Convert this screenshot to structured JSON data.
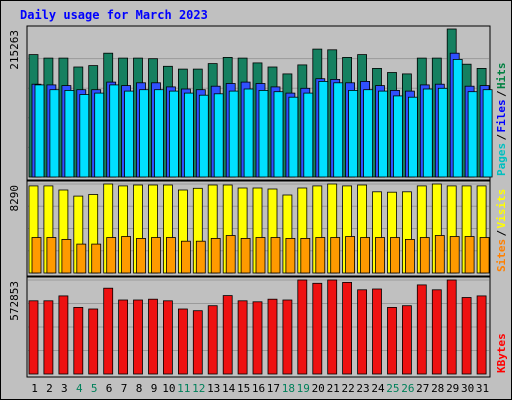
{
  "chart_data": {
    "type": "bar",
    "title": "Daily usage for March 2023",
    "days": [
      "1",
      "2",
      "3",
      "4",
      "5",
      "6",
      "7",
      "8",
      "9",
      "10",
      "11",
      "12",
      "13",
      "14",
      "15",
      "16",
      "17",
      "18",
      "19",
      "20",
      "21",
      "22",
      "23",
      "24",
      "25",
      "26",
      "27",
      "28",
      "29",
      "30",
      "31"
    ],
    "weekend_days": [
      "4",
      "5",
      "11",
      "12",
      "18",
      "19",
      "25",
      "26"
    ],
    "panels": [
      {
        "id": "pages-files-hits",
        "max_label": "215263",
        "ymax": 215263,
        "legend": [
          {
            "name": "Pages",
            "color": "#00c0c0"
          },
          {
            "name": "Files",
            "color": "#0000ff"
          },
          {
            "name": "Hits",
            "color": "#008040"
          }
        ],
        "series": [
          {
            "name": "Hits",
            "color": "#158060",
            "values": [
              178000,
              173000,
              173000,
              160000,
              162000,
              180000,
              173000,
              173000,
              172000,
              161000,
              157000,
              157000,
              165000,
              174000,
              173000,
              166000,
              160000,
              150000,
              163000,
              186000,
              185000,
              174000,
              178000,
              158000,
              152000,
              150000,
              173000,
              173000,
              215263,
              164000,
              158000
            ]
          },
          {
            "name": "Files",
            "color": "#3050ff",
            "values": [
              135000,
              134000,
              133000,
              127000,
              127000,
              138000,
              133000,
              137000,
              137000,
              131000,
              128000,
              127000,
              132000,
              136000,
              138000,
              136000,
              131000,
              122000,
              129000,
              143000,
              142000,
              137000,
              139000,
              133000,
              126000,
              125000,
              134000,
              135000,
              180000,
              132000,
              133000
            ]
          },
          {
            "name": "Pages",
            "color": "#00e0ff",
            "values": [
              134000,
              127000,
              126000,
              120000,
              122000,
              134000,
              125000,
              127000,
              127000,
              125000,
              122000,
              119000,
              121000,
              125000,
              128000,
              126000,
              124000,
              116000,
              122000,
              139000,
              137000,
              126000,
              127000,
              125000,
              118000,
              116000,
              128000,
              129000,
              171000,
              124000,
              127000
            ]
          }
        ]
      },
      {
        "id": "sites-visits",
        "max_label": "8290",
        "ymax": 8290,
        "legend": [
          {
            "name": "Sites",
            "color": "#ff8000"
          },
          {
            "name": "Visits",
            "color": "#ffff00"
          }
        ],
        "series": [
          {
            "name": "Visits",
            "color": "#ffff00",
            "values": [
              8110,
              8110,
              7730,
              7160,
              7310,
              8290,
              8110,
              8200,
              8200,
              8200,
              7730,
              7890,
              8200,
              8200,
              7920,
              7920,
              7820,
              7270,
              7920,
              8110,
              8290,
              8110,
              8200,
              7560,
              7530,
              7560,
              8110,
              8290,
              8110,
              8110,
              8110
            ]
          },
          {
            "name": "Sites",
            "color": "#ff9a00",
            "values": [
              3310,
              3310,
              3130,
              2690,
              2690,
              3310,
              3400,
              3220,
              3310,
              3310,
              2960,
              2960,
              3220,
              3490,
              3220,
              3310,
              3310,
              3220,
              3220,
              3310,
              3310,
              3400,
              3310,
              3310,
              3310,
              3130,
              3310,
              3490,
              3400,
              3400,
              3310
            ]
          }
        ]
      },
      {
        "id": "kbytes",
        "max_label": "572853",
        "ymax": 572853,
        "legend": [
          {
            "name": "KBytes",
            "color": "#ff0000"
          }
        ],
        "series": [
          {
            "name": "KBytes",
            "color": "#ee1111",
            "values": [
              446000,
              446000,
              476000,
              406000,
              396000,
              523000,
              451000,
              451000,
              456000,
              446000,
              396000,
              386000,
              416000,
              478000,
              446000,
              440000,
              456000,
              451000,
              572853,
              553000,
              572853,
              558000,
              513000,
              518000,
              406000,
              416000,
              543000,
              513000,
              572853,
              466000,
              476000
            ]
          }
        ]
      }
    ]
  }
}
